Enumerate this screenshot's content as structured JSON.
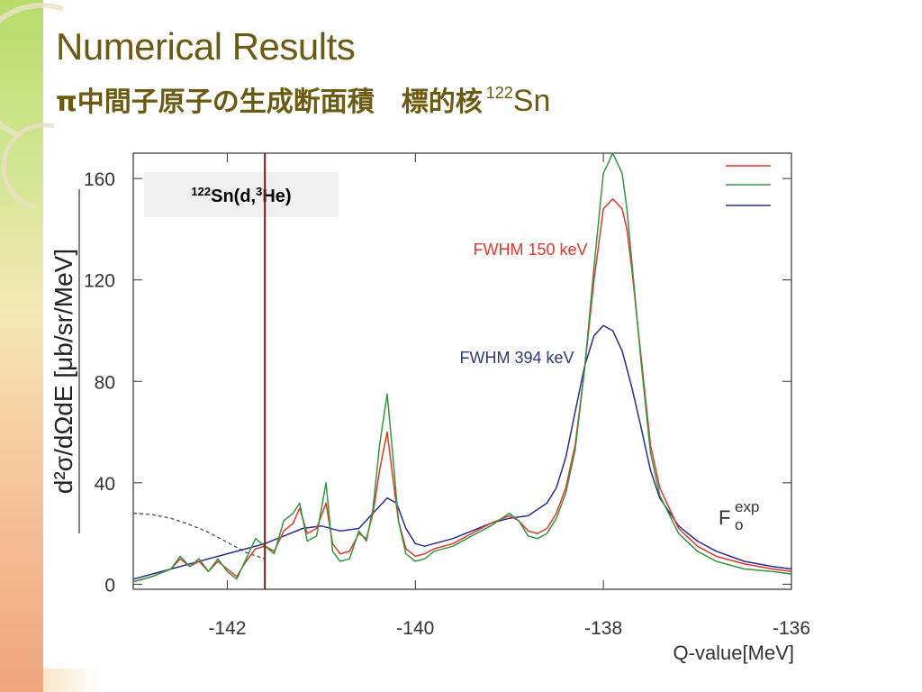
{
  "slide": {
    "title": "Numerical Results",
    "subtitle_jp": "π中間子原子の生成断面積　標的核",
    "subtitle_mass": "122",
    "subtitle_symbol": "Sn"
  },
  "colors": {
    "title": "#6b5a10",
    "red_series": "#e8342a",
    "green_series": "#2e9a3a",
    "blue_series": "#2a2a9a",
    "dashed_series": "#555555",
    "vertical_marker": "#7a1a1a",
    "frame": "#333333"
  },
  "chart_data": {
    "type": "line",
    "reaction_label": {
      "mass": "122",
      "pre": "Sn(d,",
      "mass2": "3",
      "post": "He)"
    },
    "xlabel": "Q-value[MeV]",
    "ylabel": "d²σ/dΩdE  [μb/sr/MeV]",
    "xlim": [
      -143.0,
      -136.0
    ],
    "ylim": [
      -2,
      170
    ],
    "xticks": [
      -142,
      -140,
      -138,
      -136
    ],
    "xtick_labels": [
      "-142",
      "-140",
      "-138",
      "-136"
    ],
    "yticks": [
      0,
      40,
      80,
      120,
      160
    ],
    "ytick_labels": [
      "0",
      "40",
      "80",
      "120",
      "160"
    ],
    "vertical_line_x": -141.6,
    "legend_placement": "top-right",
    "annotations": [
      {
        "text": "FWHM  150 keV",
        "color": "#e8342a"
      },
      {
        "text": "FWHM  394 keV",
        "color": "#2a3a7a"
      },
      {
        "text": "F",
        "sub": "o",
        "sup": "exp"
      }
    ],
    "dashed_curve": {
      "x": [
        -143.0,
        -142.8,
        -142.6,
        -142.4,
        -142.2,
        -142.0,
        -141.8,
        -141.6
      ],
      "y": [
        28,
        27.5,
        26,
        23.5,
        20.5,
        16.5,
        12.5,
        10
      ]
    },
    "series": [
      {
        "color_key": "red",
        "x": [
          -143.0,
          -142.8,
          -142.6,
          -142.5,
          -142.4,
          -142.3,
          -142.2,
          -142.1,
          -142.0,
          -141.9,
          -141.8,
          -141.7,
          -141.6,
          -141.5,
          -141.4,
          -141.3,
          -141.23,
          -141.15,
          -141.05,
          -140.95,
          -140.88,
          -140.8,
          -140.7,
          -140.6,
          -140.52,
          -140.45,
          -140.38,
          -140.3,
          -140.25,
          -140.18,
          -140.1,
          -140.0,
          -139.9,
          -139.8,
          -139.6,
          -139.4,
          -139.2,
          -139.0,
          -138.9,
          -138.8,
          -138.7,
          -138.6,
          -138.5,
          -138.4,
          -138.3,
          -138.2,
          -138.1,
          -138.0,
          -137.9,
          -137.8,
          -137.75,
          -137.7,
          -137.6,
          -137.5,
          -137.4,
          -137.2,
          -137.0,
          -136.8,
          -136.5,
          -136.2,
          -136.0
        ],
        "y": [
          1,
          3,
          6,
          10,
          7,
          9,
          5,
          9,
          6,
          3,
          9,
          14,
          15,
          13,
          21,
          24,
          30,
          20,
          22,
          32,
          16,
          12,
          13,
          20,
          18,
          28,
          45,
          60,
          45,
          25,
          14,
          11,
          12,
          14,
          16,
          20,
          24,
          27,
          25,
          21,
          20,
          22,
          28,
          38,
          55,
          85,
          120,
          148,
          152,
          148,
          140,
          125,
          90,
          55,
          38,
          22,
          15,
          11,
          8,
          6,
          5
        ]
      },
      {
        "color_key": "green",
        "x": [
          -143.0,
          -142.8,
          -142.6,
          -142.5,
          -142.4,
          -142.3,
          -142.2,
          -142.1,
          -142.0,
          -141.9,
          -141.8,
          -141.7,
          -141.6,
          -141.5,
          -141.4,
          -141.3,
          -141.23,
          -141.15,
          -141.05,
          -140.95,
          -140.88,
          -140.8,
          -140.7,
          -140.6,
          -140.52,
          -140.45,
          -140.38,
          -140.3,
          -140.25,
          -140.18,
          -140.1,
          -140.0,
          -139.9,
          -139.8,
          -139.6,
          -139.4,
          -139.2,
          -139.0,
          -138.9,
          -138.8,
          -138.7,
          -138.6,
          -138.5,
          -138.4,
          -138.3,
          -138.2,
          -138.1,
          -138.0,
          -137.9,
          -137.8,
          -137.75,
          -137.7,
          -137.6,
          -137.5,
          -137.4,
          -137.2,
          -137.0,
          -136.8,
          -136.5,
          -136.2,
          -136.0
        ],
        "y": [
          1,
          3,
          6,
          11,
          7,
          10,
          5,
          10,
          5,
          2,
          10,
          18,
          15,
          12,
          25,
          28,
          32,
          17,
          19,
          40,
          13,
          9,
          10,
          21,
          17,
          30,
          55,
          75,
          55,
          25,
          12,
          9,
          10,
          13,
          15,
          19,
          23,
          28,
          25,
          19,
          18,
          20,
          26,
          36,
          53,
          85,
          125,
          162,
          170,
          162,
          148,
          128,
          88,
          52,
          35,
          20,
          13,
          9,
          6,
          5,
          4
        ]
      },
      {
        "color_key": "blue",
        "x": [
          -143.0,
          -142.8,
          -142.6,
          -142.4,
          -142.2,
          -142.0,
          -141.8,
          -141.6,
          -141.4,
          -141.2,
          -141.0,
          -140.8,
          -140.6,
          -140.45,
          -140.3,
          -140.2,
          -140.1,
          -140.0,
          -139.9,
          -139.8,
          -139.6,
          -139.4,
          -139.2,
          -139.0,
          -138.8,
          -138.6,
          -138.5,
          -138.4,
          -138.3,
          -138.2,
          -138.1,
          -138.0,
          -137.9,
          -137.8,
          -137.7,
          -137.6,
          -137.5,
          -137.4,
          -137.2,
          -137.0,
          -136.8,
          -136.5,
          -136.2,
          -136.0
        ],
        "y": [
          2,
          4,
          6,
          8,
          10,
          12,
          14,
          16,
          19,
          22,
          23,
          21,
          22,
          28,
          34,
          32,
          22,
          16,
          15,
          16,
          18,
          21,
          24,
          26,
          27,
          32,
          38,
          50,
          68,
          86,
          98,
          102,
          100,
          92,
          78,
          62,
          45,
          34,
          23,
          17,
          13,
          9,
          7,
          6
        ]
      }
    ]
  }
}
